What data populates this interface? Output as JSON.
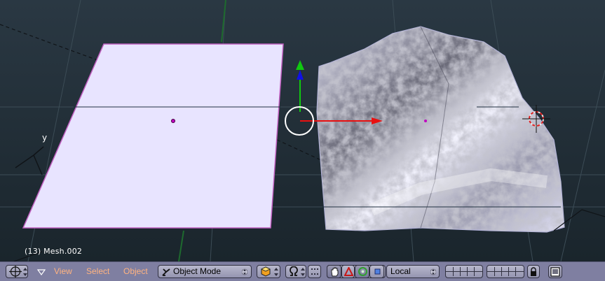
{
  "viewport": {
    "object_label": "(13) Mesh.002",
    "axis_y_label": "y"
  },
  "header": {
    "menu_view": "View",
    "menu_select": "Select",
    "menu_object": "Object",
    "mode_label": "Object Mode",
    "orientation_label": "Local"
  },
  "colors": {
    "viewport_bg": "#1f2b33",
    "header_bg": "#7f7fa1",
    "menu_text": "#ffb380",
    "plane_fill": "#e8e4ff",
    "axis_x": "#e81010",
    "axis_y": "#10c810",
    "axis_z": "#1010e8"
  }
}
